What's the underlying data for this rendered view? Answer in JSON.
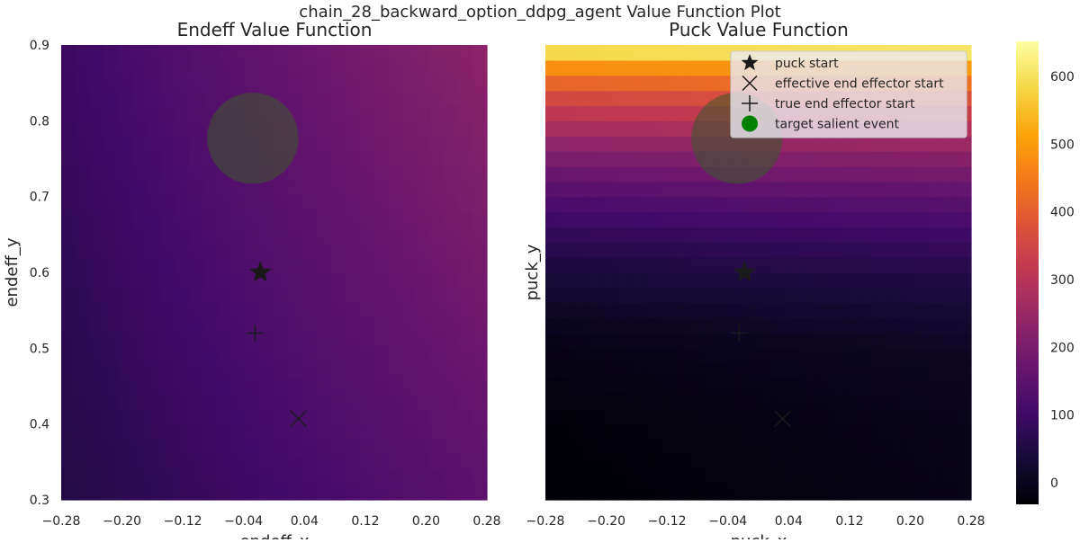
{
  "suptitle": "chain_28_backward_option_ddpg_agent Value Function Plot",
  "colormap": "inferno",
  "chart_data": [
    {
      "type": "heatmap",
      "title": "Endeff Value Function",
      "xlabel": "endeff_x",
      "ylabel": "endeff_y",
      "xlim": [
        -0.28,
        0.28
      ],
      "ylim": [
        0.3,
        0.9
      ],
      "xticks": [
        "−0.28",
        "−0.20",
        "−0.12",
        "−0.04",
        "0.04",
        "0.12",
        "0.20",
        "0.28"
      ],
      "yticks": [
        "0.3",
        "0.4",
        "0.5",
        "0.6",
        "0.7",
        "0.8",
        "0.9"
      ],
      "grid_cells": 30,
      "value_model": {
        "description": "approximate value surface sampled from the image",
        "corner_bottom_left": 55,
        "corner_bottom_right": 150,
        "corner_top_left": 95,
        "corner_top_right": 230
      },
      "markers": {
        "puck_start": [
          -0.018,
          0.6
        ],
        "effective_end_effector_start": [
          0.032,
          0.407
        ],
        "true_end_effector_start": [
          -0.025,
          0.52
        ],
        "target_salient_event": [
          -0.028,
          0.777
        ]
      },
      "target_radius": 0.06
    },
    {
      "type": "heatmap",
      "title": "Puck Value Function",
      "xlabel": "puck_x",
      "ylabel": "puck_y",
      "xlim": [
        -0.28,
        0.28
      ],
      "ylim": [
        0.3,
        0.9
      ],
      "xticks": [
        "−0.28",
        "−0.20",
        "−0.12",
        "−0.04",
        "0.04",
        "0.12",
        "0.20",
        "0.28"
      ],
      "grid_cells": 30,
      "value_model": {
        "description": "approximate value by y row (bottom to top), slight increase with x",
        "row_profile": [
          [
            0.3,
            -30
          ],
          [
            0.4,
            -25
          ],
          [
            0.5,
            -10
          ],
          [
            0.55,
            10
          ],
          [
            0.6,
            40
          ],
          [
            0.65,
            80
          ],
          [
            0.7,
            130
          ],
          [
            0.75,
            200
          ],
          [
            0.8,
            290
          ],
          [
            0.84,
            380
          ],
          [
            0.87,
            480
          ],
          [
            0.9,
            640
          ]
        ],
        "x_gain": 20
      },
      "markers": {
        "puck_start": [
          -0.018,
          0.6
        ],
        "effective_end_effector_start": [
          0.032,
          0.407
        ],
        "true_end_effector_start": [
          -0.025,
          0.52
        ],
        "target_salient_event": [
          -0.028,
          0.777
        ]
      },
      "target_radius": 0.06
    }
  ],
  "legend": {
    "position": "upper-right",
    "entries": [
      {
        "label": "puck start",
        "marker": "star-icon"
      },
      {
        "label": "effective end effector start",
        "marker": "x-icon"
      },
      {
        "label": "true end effector start",
        "marker": "plus-icon"
      },
      {
        "label": "target salient event",
        "marker": "green-circle-icon",
        "color": "#008000"
      }
    ]
  },
  "colorbar": {
    "range": [
      -32,
      652
    ],
    "ticks": [
      "0",
      "100",
      "200",
      "300",
      "400",
      "500",
      "600"
    ]
  }
}
